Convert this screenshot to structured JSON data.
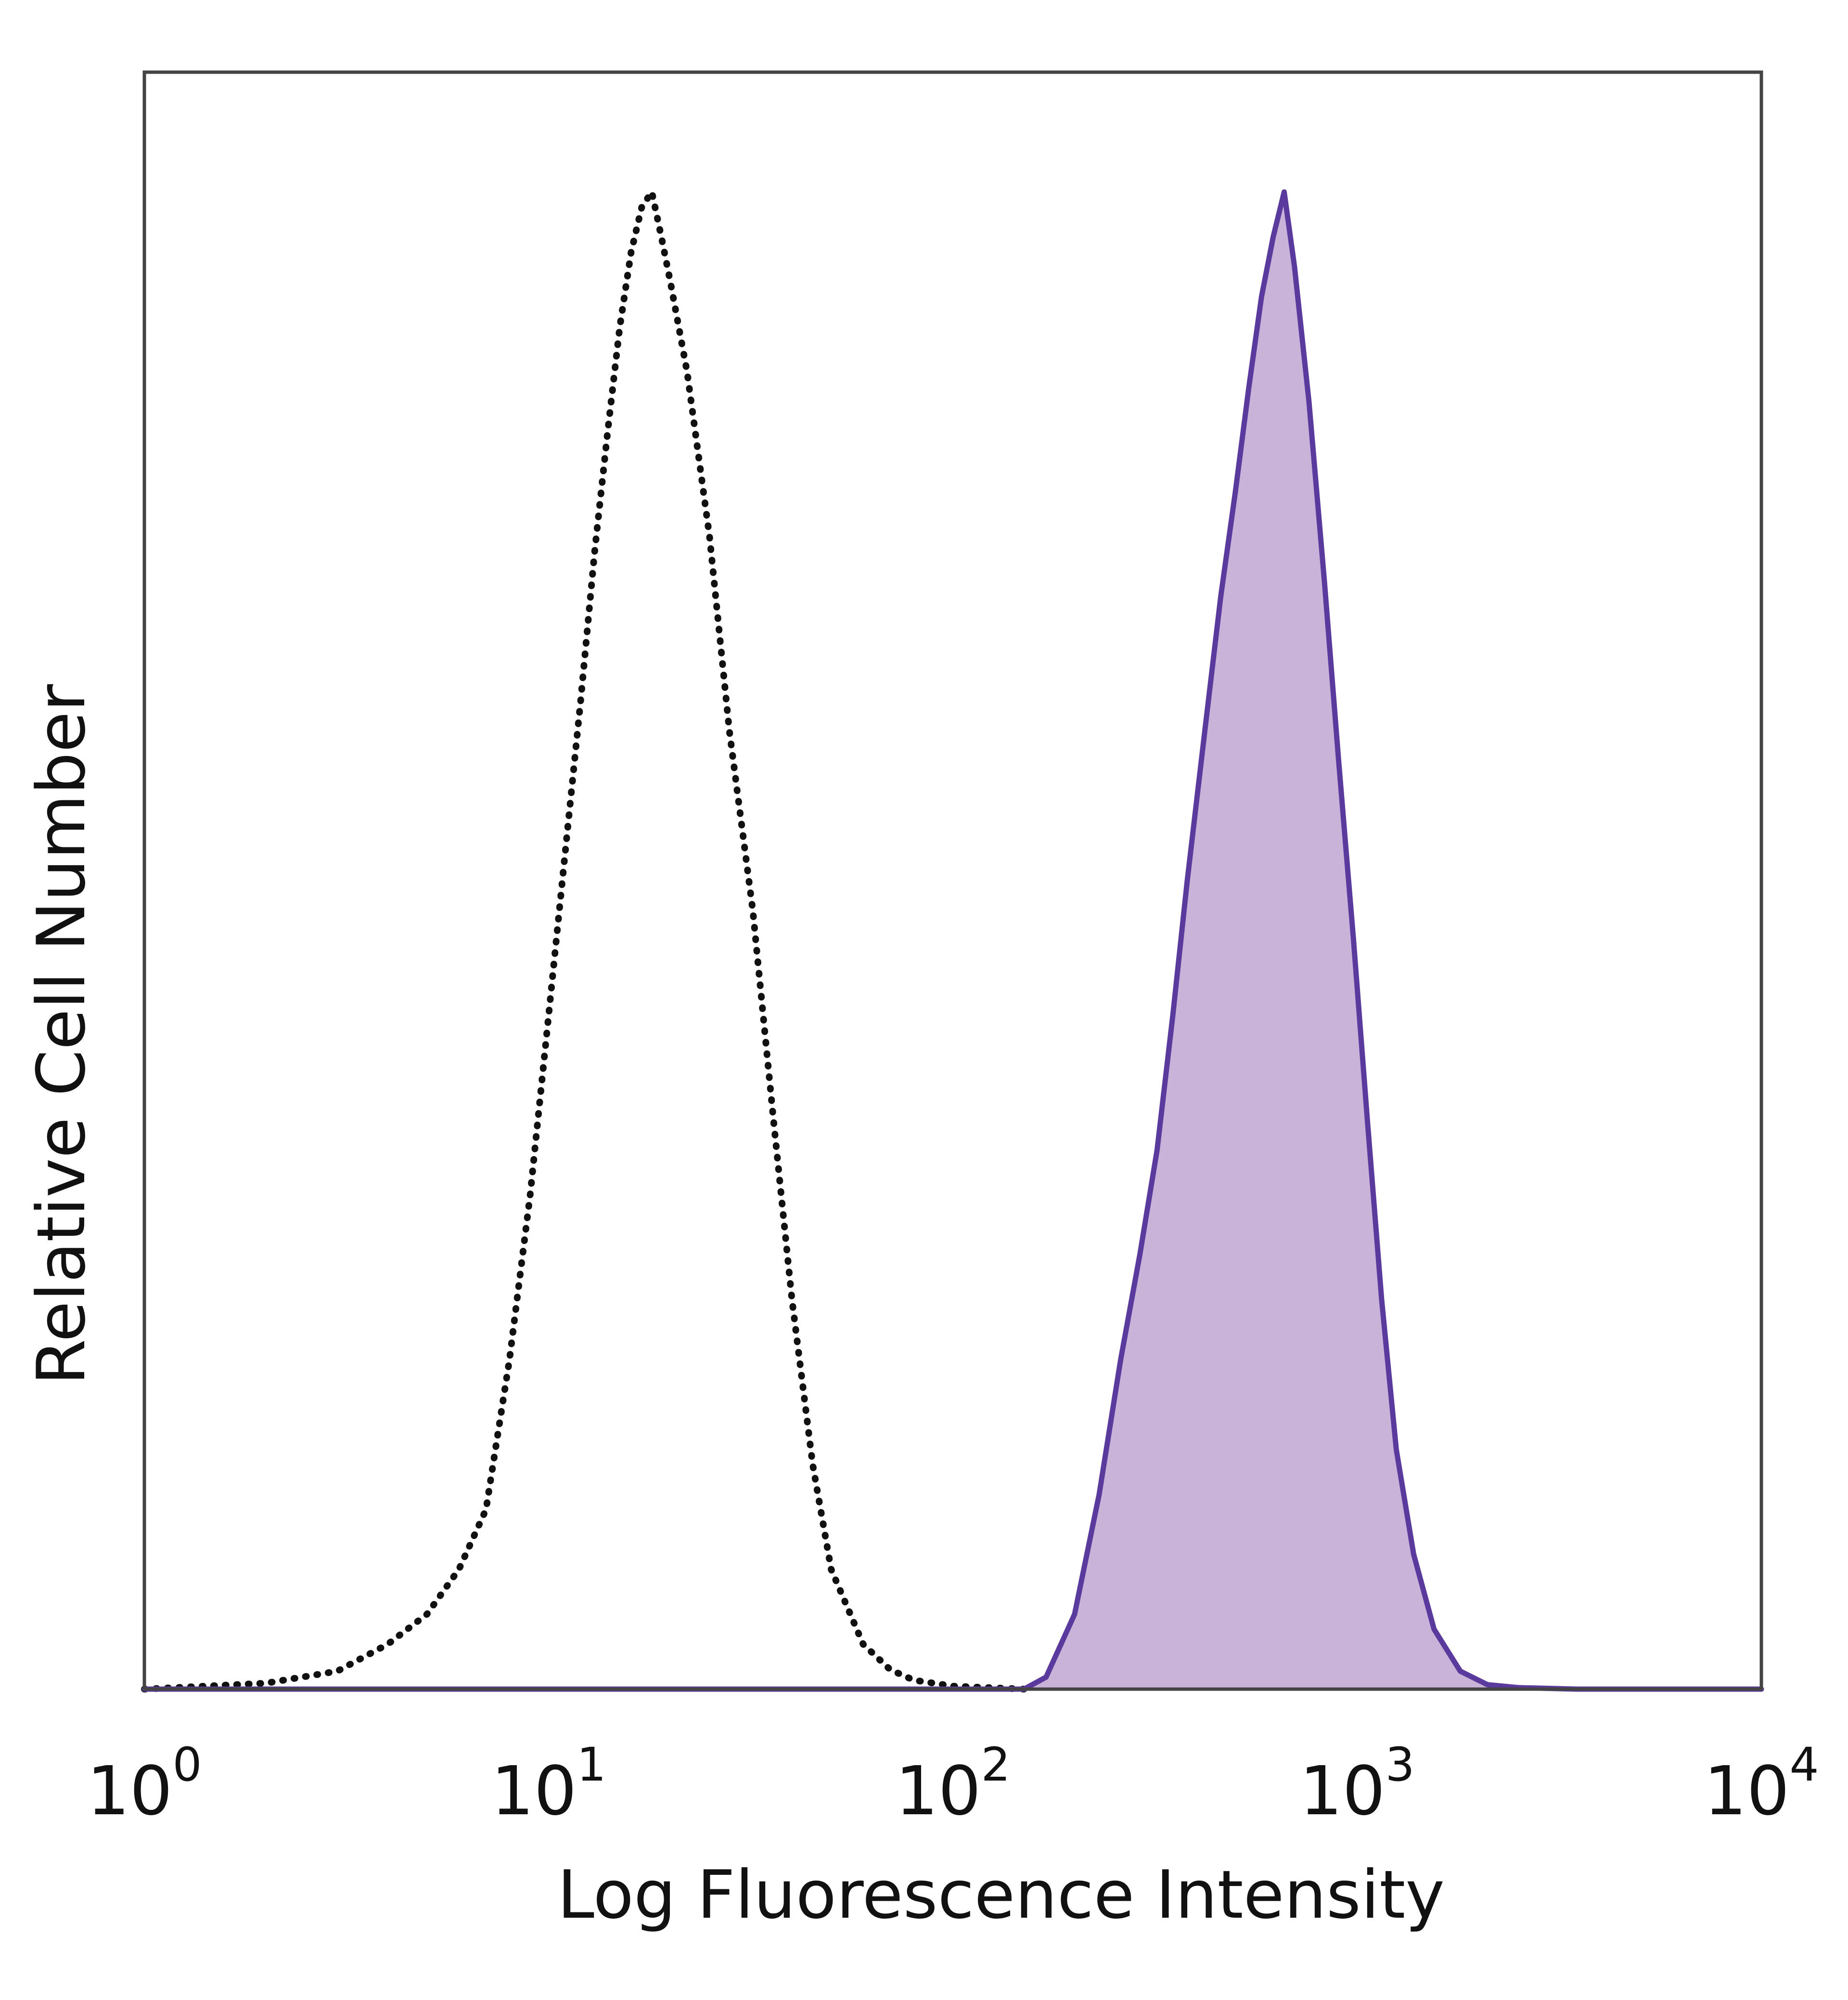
{
  "chart_data": {
    "type": "area",
    "title": "",
    "xlabel": "Log Fluorescence Intensity",
    "ylabel": "Relative Cell Number",
    "x_scale": "log",
    "xlim": [
      1,
      10000
    ],
    "ylim": [
      0,
      1.08
    ],
    "grid": false,
    "legend": "none",
    "x_ticks": [
      {
        "base": "10",
        "exp": "0",
        "value": 1
      },
      {
        "base": "10",
        "exp": "1",
        "value": 10
      },
      {
        "base": "10",
        "exp": "2",
        "value": 100
      },
      {
        "base": "10",
        "exp": "3",
        "value": 1000
      },
      {
        "base": "10",
        "exp": "4",
        "value": 10000
      }
    ],
    "series": [
      {
        "style": "dotted",
        "fill": false,
        "color": "#111111",
        "points": [
          [
            1,
            0.0
          ],
          [
            2,
            0.004
          ],
          [
            3,
            0.012
          ],
          [
            4,
            0.03
          ],
          [
            5,
            0.05
          ],
          [
            6,
            0.08
          ],
          [
            7,
            0.12
          ],
          [
            8,
            0.22
          ],
          [
            9,
            0.33
          ],
          [
            10,
            0.45
          ],
          [
            11,
            0.56
          ],
          [
            12,
            0.66
          ],
          [
            13,
            0.76
          ],
          [
            14,
            0.84
          ],
          [
            15,
            0.91
          ],
          [
            16,
            0.96
          ],
          [
            17,
            0.99
          ],
          [
            18,
            1.0
          ],
          [
            19,
            0.97
          ],
          [
            20,
            0.94
          ],
          [
            22,
            0.88
          ],
          [
            25,
            0.77
          ],
          [
            28,
            0.64
          ],
          [
            32,
            0.52
          ],
          [
            36,
            0.38
          ],
          [
            40,
            0.26
          ],
          [
            45,
            0.15
          ],
          [
            50,
            0.08
          ],
          [
            60,
            0.03
          ],
          [
            70,
            0.013
          ],
          [
            80,
            0.006
          ],
          [
            100,
            0.002
          ],
          [
            150,
            0.0
          ]
        ]
      },
      {
        "style": "solid",
        "fill": true,
        "color": "#5b3a9e",
        "fill_color": "#c9b3d9",
        "points": [
          [
            1,
            0.0
          ],
          [
            150,
            0.0
          ],
          [
            170,
            0.008
          ],
          [
            200,
            0.05
          ],
          [
            230,
            0.13
          ],
          [
            260,
            0.22
          ],
          [
            290,
            0.29
          ],
          [
            320,
            0.36
          ],
          [
            350,
            0.45
          ],
          [
            380,
            0.54
          ],
          [
            420,
            0.64
          ],
          [
            460,
            0.73
          ],
          [
            500,
            0.8
          ],
          [
            540,
            0.87
          ],
          [
            580,
            0.93
          ],
          [
            620,
            0.97
          ],
          [
            660,
            1.0
          ],
          [
            700,
            0.95
          ],
          [
            760,
            0.86
          ],
          [
            830,
            0.74
          ],
          [
            900,
            0.62
          ],
          [
            980,
            0.5
          ],
          [
            1060,
            0.38
          ],
          [
            1150,
            0.26
          ],
          [
            1250,
            0.16
          ],
          [
            1380,
            0.09
          ],
          [
            1550,
            0.04
          ],
          [
            1800,
            0.012
          ],
          [
            2100,
            0.003
          ],
          [
            2500,
            0.001
          ],
          [
            3500,
            0.0
          ],
          [
            10000,
            0.0
          ]
        ]
      }
    ]
  }
}
